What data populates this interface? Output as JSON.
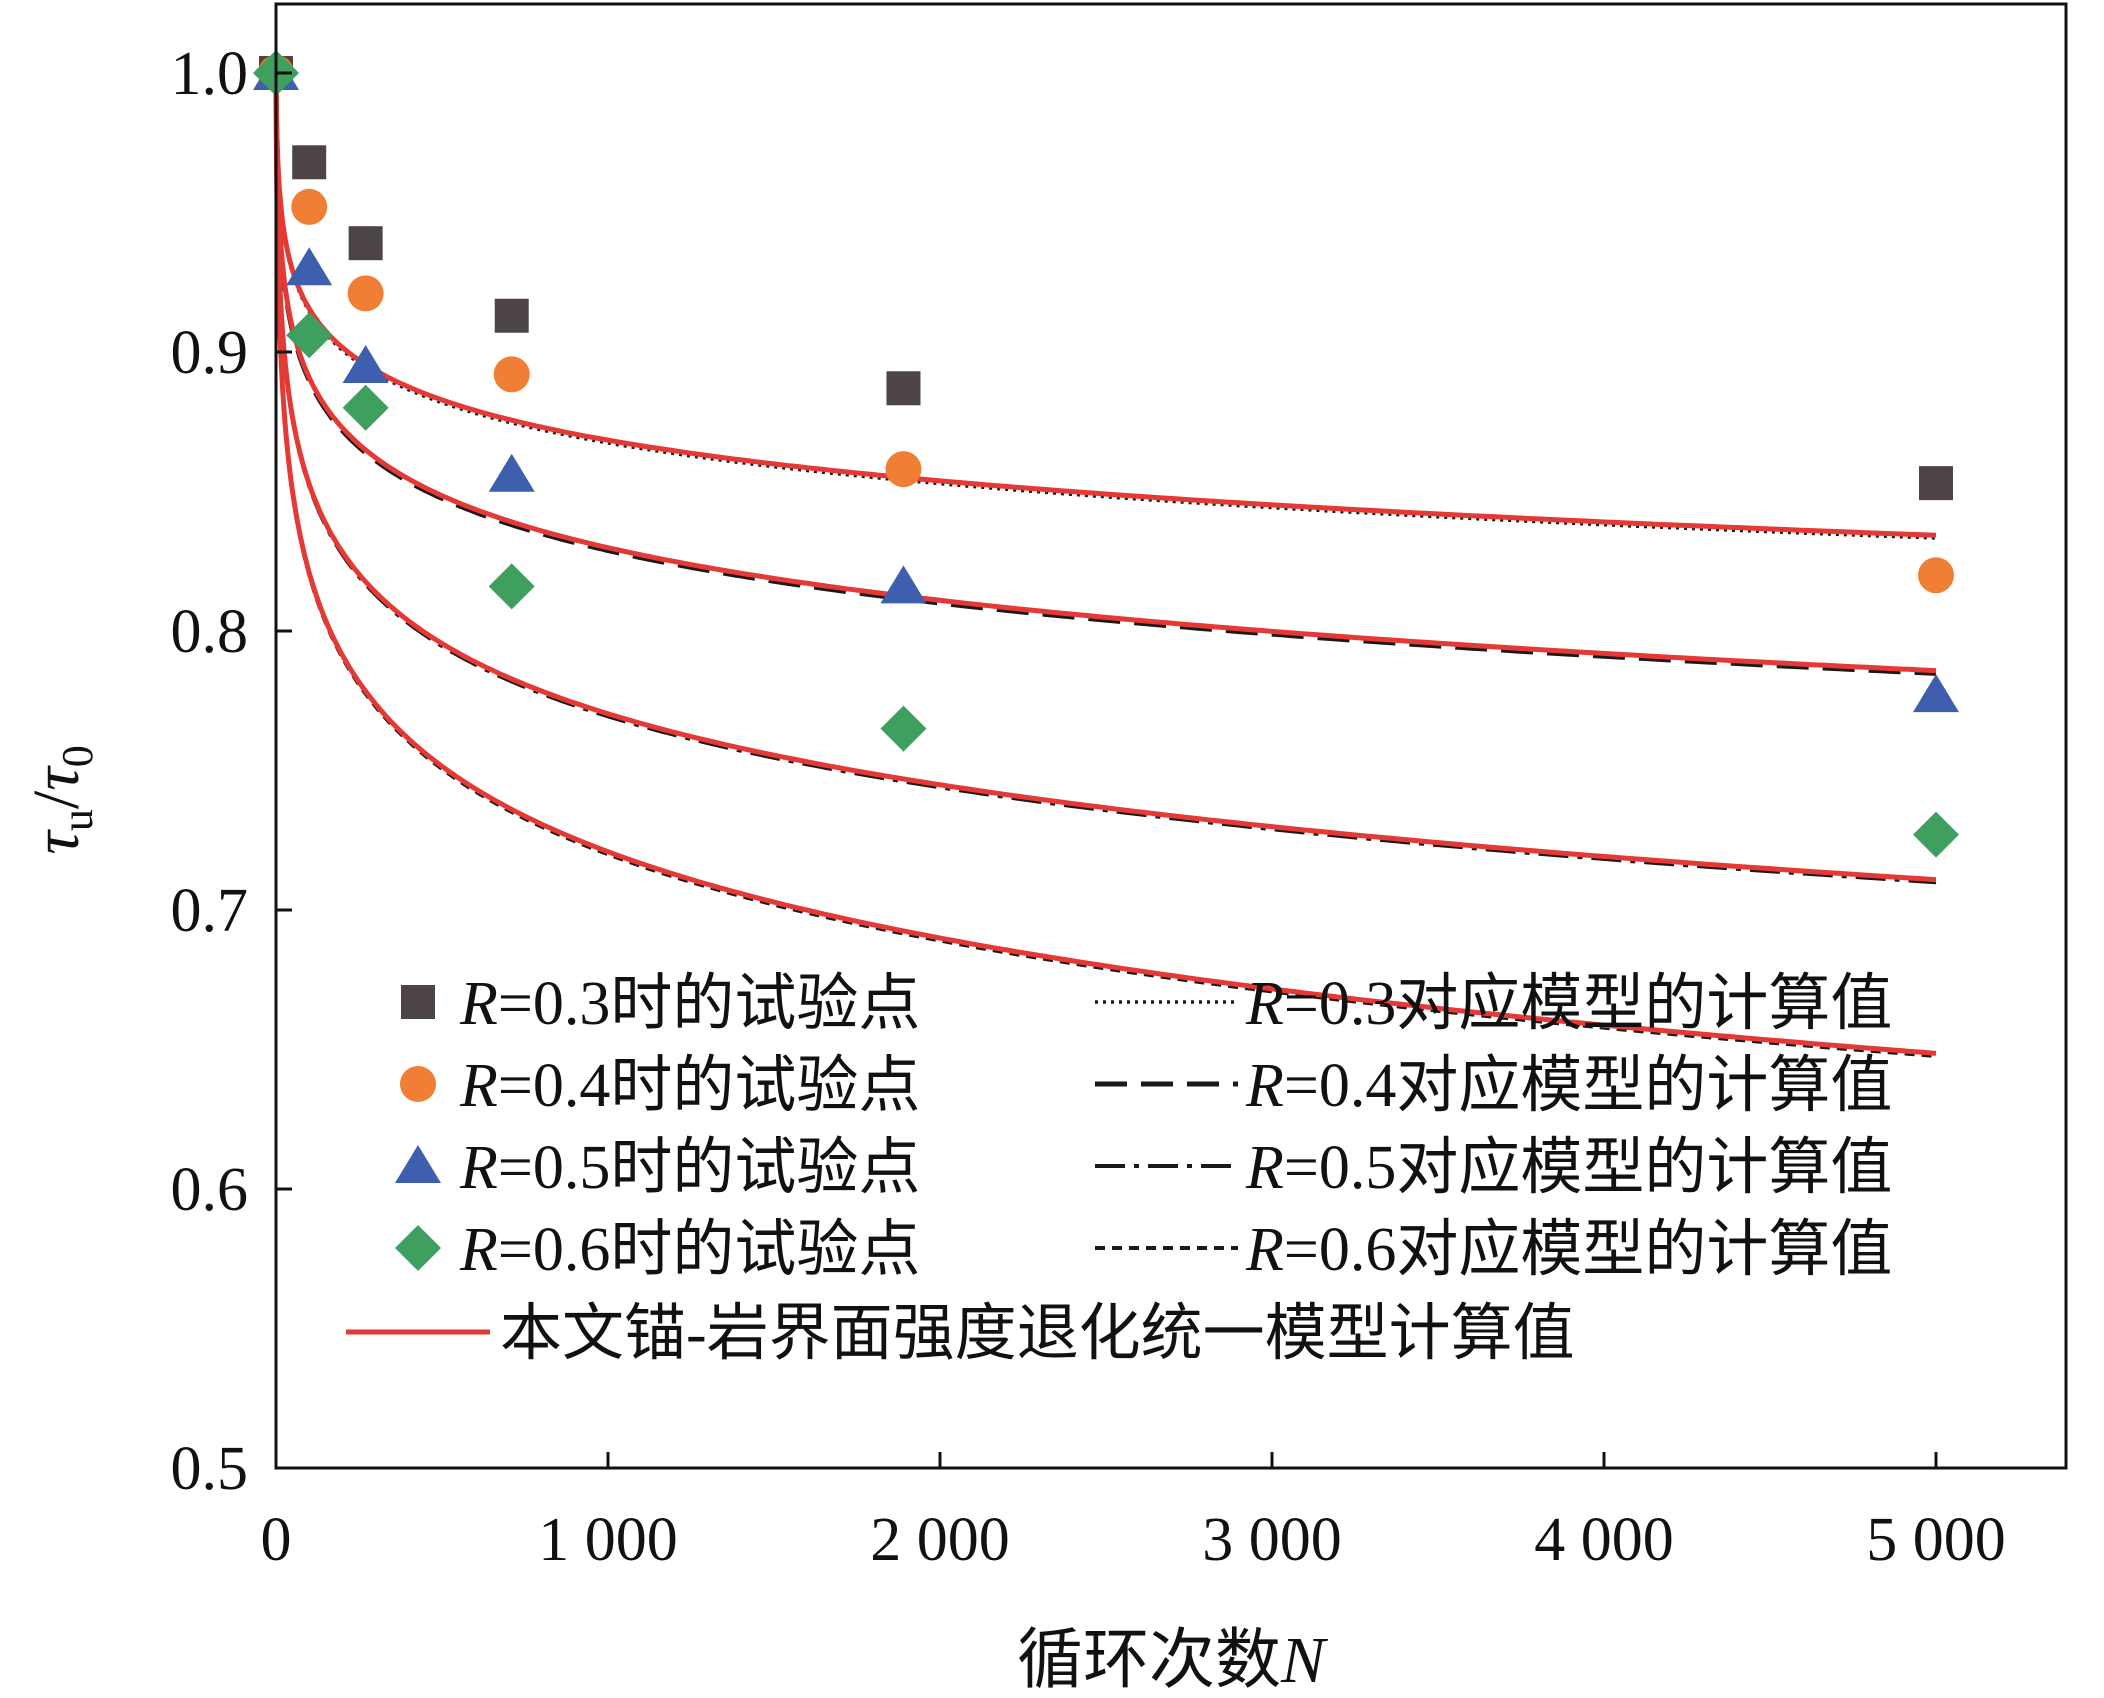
{
  "chart_data": {
    "type": "scatter",
    "xlabel_prefix": "循环次数",
    "xlabel_var": "N",
    "ylabel_main": "τ",
    "ylabel_sub1": "u",
    "ylabel_slash": "/",
    "ylabel_main2": "τ",
    "ylabel_sub2": "0",
    "xlim": [
      0,
      5500
    ],
    "ylim": [
      0.5,
      1.02
    ],
    "xticks": [
      0,
      1000,
      2000,
      3000,
      4000,
      5000
    ],
    "xtick_labels": [
      "0",
      "1 000",
      "2 000",
      "3 000",
      "4 000",
      "5 000"
    ],
    "yticks": [
      0.5,
      0.6,
      0.7,
      0.8,
      0.9,
      1.0
    ],
    "ytick_labels": [
      "0.5",
      "0.6",
      "0.7",
      "0.8",
      "0.9",
      "1.0"
    ],
    "series": [
      {
        "name": "R=0.3",
        "marker": "square",
        "color": "#4d4545",
        "line_style": "dotted",
        "x": [
          0,
          100,
          270,
          710,
          1890,
          5000
        ],
        "y": [
          1.0,
          0.968,
          0.939,
          0.913,
          0.887,
          0.853
        ],
        "curve_b": 0.0157
      },
      {
        "name": "R=0.4",
        "marker": "circle",
        "color": "#f07f35",
        "line_style": "dashed",
        "x": [
          0,
          100,
          270,
          710,
          1890,
          5000
        ],
        "y": [
          1.0,
          0.952,
          0.921,
          0.892,
          0.858,
          0.82
        ],
        "curve_b": 0.0203
      },
      {
        "name": "R=0.5",
        "marker": "triangle",
        "color": "#3d5fad",
        "line_style": "dashdot",
        "x": [
          0,
          100,
          270,
          710,
          1890,
          5000
        ],
        "y": [
          1.0,
          0.93,
          0.895,
          0.856,
          0.816,
          0.777
        ],
        "curve_b": 0.0274
      },
      {
        "name": "R=0.6",
        "marker": "diamond",
        "color": "#3f9f5e",
        "line_style": "shortdash",
        "x": [
          0,
          100,
          270,
          710,
          1890,
          5000
        ],
        "y": [
          1.0,
          0.906,
          0.88,
          0.816,
          0.765,
          0.727
        ],
        "curve_b": 0.0333
      }
    ],
    "unified_model_color": "#e53935",
    "legend": {
      "placement": "bottom-left",
      "points": [
        {
          "var": "R",
          "text": "=0.3时的试验点"
        },
        {
          "var": "R",
          "text": "=0.4时的试验点"
        },
        {
          "var": "R",
          "text": "=0.5时的试验点"
        },
        {
          "var": "R",
          "text": "=0.6时的试验点"
        }
      ],
      "models": [
        {
          "var": "R",
          "text": "=0.3对应模型的计算值"
        },
        {
          "var": "R",
          "text": "=0.4对应模型的计算值"
        },
        {
          "var": "R",
          "text": "=0.5对应模型的计算值"
        },
        {
          "var": "R",
          "text": "=0.6对应模型的计算值"
        }
      ],
      "unified": "本文锚-岩界面强度退化统一模型计算值"
    }
  }
}
